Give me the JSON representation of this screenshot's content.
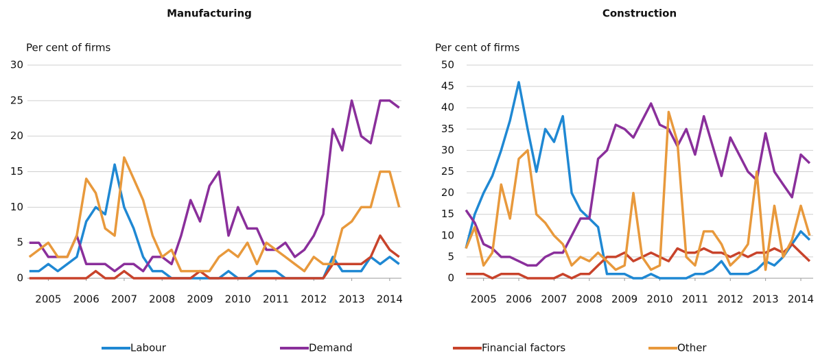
{
  "chart_data": [
    {
      "type": "line",
      "title": "Manufacturing",
      "y_label": "Per cent of firms",
      "x": [
        2004.5,
        2004.75,
        2005,
        2005.25,
        2005.5,
        2005.75,
        2006,
        2006.25,
        2006.5,
        2006.75,
        2007,
        2007.25,
        2007.5,
        2007.75,
        2008,
        2008.25,
        2008.5,
        2008.75,
        2009,
        2009.25,
        2009.5,
        2009.75,
        2010,
        2010.25,
        2010.5,
        2010.75,
        2011,
        2011.25,
        2011.5,
        2011.75,
        2012,
        2012.25,
        2012.5,
        2012.75,
        2013,
        2013.25,
        2013.5,
        2013.75,
        2014,
        2014.25
      ],
      "xlim": [
        2004.45,
        2014.31
      ],
      "xticks": [
        2005,
        2006,
        2007,
        2008,
        2009,
        2010,
        2011,
        2012,
        2013,
        2014
      ],
      "ylim": [
        0,
        30
      ],
      "yticks": [
        0,
        5,
        10,
        15,
        20,
        25,
        30
      ],
      "grid": true,
      "series": [
        {
          "name": "Labour",
          "color": "#1f88d3",
          "values": [
            1,
            1,
            2,
            1,
            2,
            3,
            8,
            10,
            9,
            16,
            10,
            7,
            3,
            1,
            1,
            0,
            0,
            0,
            0,
            0,
            0,
            1,
            0,
            0,
            1,
            1,
            1,
            0,
            0,
            0,
            0,
            0,
            3,
            1,
            1,
            1,
            3,
            2,
            3,
            2
          ]
        },
        {
          "name": "Demand",
          "color": "#8a2f9b",
          "values": [
            5,
            5,
            3,
            3,
            3,
            6,
            2,
            2,
            2,
            1,
            2,
            2,
            1,
            3,
            3,
            2,
            6,
            11,
            8,
            13,
            15,
            6,
            10,
            7,
            7,
            4,
            4,
            5,
            3,
            4,
            6,
            9,
            21,
            18,
            25,
            20,
            19,
            25,
            25,
            24
          ]
        },
        {
          "name": "Financial factors",
          "color": "#c8432b",
          "values": [
            0,
            0,
            0,
            0,
            0,
            0,
            0,
            1,
            0,
            0,
            1,
            0,
            0,
            0,
            0,
            0,
            0,
            0,
            1,
            0,
            0,
            0,
            0,
            0,
            0,
            0,
            0,
            0,
            0,
            0,
            0,
            0,
            2,
            2,
            2,
            2,
            3,
            6,
            4,
            3
          ]
        },
        {
          "name": "Other",
          "color": "#e8993c",
          "values": [
            3,
            4,
            5,
            3,
            3,
            6,
            14,
            12,
            7,
            6,
            17,
            14,
            11,
            6,
            3,
            4,
            1,
            1,
            1,
            1,
            3,
            4,
            3,
            5,
            2,
            5,
            4,
            3,
            2,
            1,
            3,
            2,
            2,
            7,
            8,
            10,
            10,
            15,
            15,
            10
          ]
        }
      ]
    },
    {
      "type": "line",
      "title": "Construction",
      "y_label": "Per cent of firms",
      "x": [
        2004.5,
        2004.75,
        2005,
        2005.25,
        2005.5,
        2005.75,
        2006,
        2006.25,
        2006.5,
        2006.75,
        2007,
        2007.25,
        2007.5,
        2007.75,
        2008,
        2008.25,
        2008.5,
        2008.75,
        2009,
        2009.25,
        2009.5,
        2009.75,
        2010,
        2010.25,
        2010.5,
        2010.75,
        2011,
        2011.25,
        2011.5,
        2011.75,
        2012,
        2012.25,
        2012.5,
        2012.75,
        2013,
        2013.25,
        2013.5,
        2013.75,
        2014,
        2014.25
      ],
      "xlim": [
        2004.52,
        2014.35
      ],
      "xticks": [
        2005,
        2006,
        2007,
        2008,
        2009,
        2010,
        2011,
        2012,
        2013,
        2014
      ],
      "ylim": [
        0,
        50
      ],
      "yticks": [
        0,
        5,
        10,
        15,
        20,
        25,
        30,
        35,
        40,
        45,
        50
      ],
      "grid": true,
      "series": [
        {
          "name": "Labour",
          "color": "#1f88d3",
          "values": [
            7,
            15,
            20,
            24,
            30,
            37,
            46,
            35,
            25,
            35,
            32,
            38,
            20,
            16,
            14,
            12,
            1,
            1,
            1,
            0,
            0,
            1,
            0,
            0,
            0,
            0,
            1,
            1,
            2,
            4,
            1,
            1,
            1,
            2,
            4,
            3,
            5,
            8,
            11,
            9
          ]
        },
        {
          "name": "Demand",
          "color": "#8a2f9b",
          "values": [
            16,
            13,
            8,
            7,
            5,
            5,
            4,
            3,
            3,
            5,
            6,
            6,
            10,
            14,
            14,
            28,
            30,
            36,
            35,
            33,
            37,
            41,
            36,
            35,
            31,
            35,
            29,
            38,
            31,
            24,
            33,
            29,
            25,
            23,
            34,
            25,
            22,
            19,
            29,
            27
          ]
        },
        {
          "name": "Financial factors",
          "color": "#c8432b",
          "values": [
            1,
            1,
            1,
            0,
            1,
            1,
            1,
            0,
            0,
            0,
            0,
            1,
            0,
            1,
            1,
            3,
            5,
            5,
            6,
            4,
            5,
            6,
            5,
            4,
            7,
            6,
            6,
            7,
            6,
            6,
            5,
            6,
            5,
            6,
            6,
            7,
            6,
            8,
            6,
            4
          ]
        },
        {
          "name": "Other",
          "color": "#e8993c",
          "values": [
            7,
            12,
            3,
            6,
            22,
            14,
            28,
            30,
            15,
            13,
            10,
            8,
            3,
            5,
            4,
            6,
            4,
            2,
            3,
            20,
            5,
            2,
            3,
            39,
            32,
            5,
            3,
            11,
            11,
            8,
            3,
            5,
            8,
            25,
            2,
            17,
            5,
            9,
            17,
            10
          ]
        }
      ]
    }
  ]
}
